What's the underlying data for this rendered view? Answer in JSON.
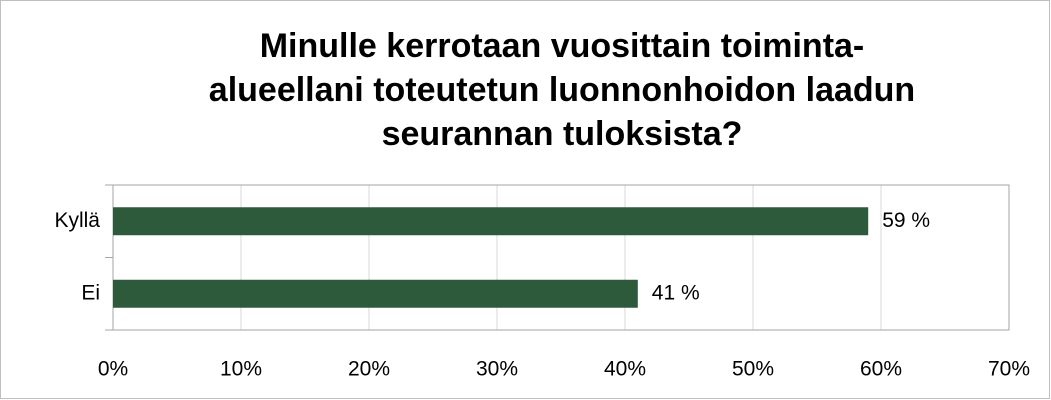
{
  "chart_data": {
    "type": "bar",
    "orientation": "horizontal",
    "title": [
      "Minulle kerrotaan vuosittain toiminta-",
      "alueellani toteutetun luonnonhoidon laadun",
      "seurannan tuloksista?"
    ],
    "categories": [
      "Kyllä",
      "Ei"
    ],
    "values": [
      59,
      41
    ],
    "value_labels": [
      "59 %",
      "41 %"
    ],
    "color": "#2d5a3b",
    "xlim": [
      0,
      70
    ],
    "xticks": [
      {
        "value": 0,
        "label": "0%"
      },
      {
        "value": 10,
        "label": "10%"
      },
      {
        "value": 20,
        "label": "20%"
      },
      {
        "value": 30,
        "label": "30%"
      },
      {
        "value": 40,
        "label": "40%"
      },
      {
        "value": 50,
        "label": "50%"
      },
      {
        "value": 60,
        "label": "60%"
      },
      {
        "value": 70,
        "label": "70%"
      }
    ],
    "grid": true
  }
}
